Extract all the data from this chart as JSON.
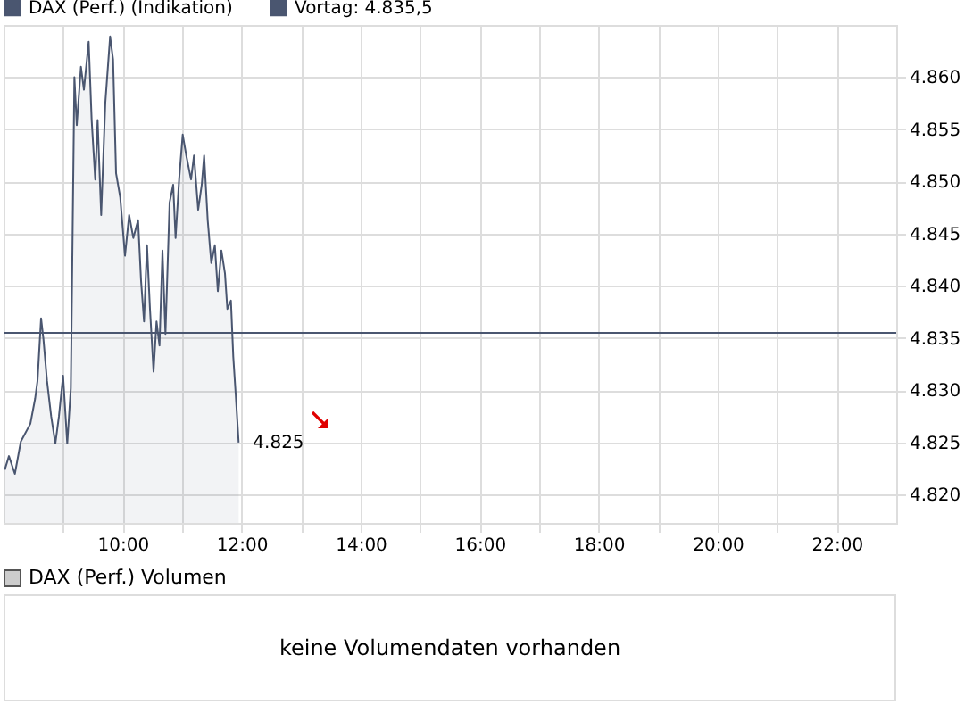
{
  "chart_data": [
    {
      "type": "area",
      "x": [
        8.02,
        8.09,
        8.19,
        8.29,
        8.45,
        8.53,
        8.57,
        8.63,
        8.67,
        8.73,
        8.8,
        8.87,
        8.93,
        9.0,
        9.07,
        9.13,
        9.19,
        9.23,
        9.3,
        9.35,
        9.43,
        9.48,
        9.54,
        9.58,
        9.64,
        9.71,
        9.79,
        9.84,
        9.89,
        9.96,
        10.04,
        10.11,
        10.18,
        10.26,
        10.31,
        10.36,
        10.41,
        10.46,
        10.52,
        10.57,
        10.62,
        10.67,
        10.72,
        10.79,
        10.85,
        10.89,
        10.95,
        11.01,
        11.07,
        11.15,
        11.2,
        11.27,
        11.33,
        11.37,
        11.43,
        11.49,
        11.55,
        11.6,
        11.66,
        11.72,
        11.76,
        11.82,
        11.86,
        11.9,
        11.95
      ],
      "series": [
        {
          "name": "DAX (Perf.) (Indikation)",
          "color": "#4a5670",
          "values": [
            4822.4,
            4823.7,
            4822,
            4825.1,
            4826.8,
            4829.2,
            4830.9,
            4836.9,
            4834.9,
            4830.9,
            4827.5,
            4824.9,
            4827.5,
            4831.4,
            4824.9,
            4830.2,
            4860,
            4855.4,
            4861,
            4858.8,
            4863.4,
            4855.9,
            4850.2,
            4855.9,
            4846.8,
            4857.6,
            4863.9,
            4861.7,
            4850.8,
            4848.5,
            4842.9,
            4846.8,
            4844.6,
            4846.3,
            4840.5,
            4836.6,
            4843.9,
            4837.8,
            4831.8,
            4836.6,
            4834.3,
            4843.4,
            4835.4,
            4848,
            4849.7,
            4844.6,
            4850.2,
            4854.5,
            4852.5,
            4850.2,
            4852.5,
            4847.3,
            4849.7,
            4852.5,
            4846.3,
            4842.2,
            4843.9,
            4839.5,
            4843.4,
            4841.2,
            4837.8,
            4838.6,
            4833.2,
            4829.7,
            4825
          ]
        }
      ],
      "xlim": [
        8,
        23
      ],
      "xticks": [
        {
          "value": 9,
          "label": null
        },
        {
          "value": 10,
          "label": "10:00"
        },
        {
          "value": 11,
          "label": null
        },
        {
          "value": 12,
          "label": "12:00"
        },
        {
          "value": 13,
          "label": null
        },
        {
          "value": 14,
          "label": "14:00"
        },
        {
          "value": 15,
          "label": null
        },
        {
          "value": 16,
          "label": "16:00"
        },
        {
          "value": 17,
          "label": null
        },
        {
          "value": 18,
          "label": "18:00"
        },
        {
          "value": 19,
          "label": null
        },
        {
          "value": 20,
          "label": "20:00"
        },
        {
          "value": 21,
          "label": null
        },
        {
          "value": 22,
          "label": "22:00"
        }
      ],
      "ylim": [
        4817.3,
        4865
      ],
      "yticks": [
        {
          "value": 4820,
          "label": "4.820"
        },
        {
          "value": 4825,
          "label": "4.825"
        },
        {
          "value": 4830,
          "label": "4.830"
        },
        {
          "value": 4835,
          "label": "4.835"
        },
        {
          "value": 4840,
          "label": "4.840"
        },
        {
          "value": 4845,
          "label": "4.845"
        },
        {
          "value": 4850,
          "label": "4.850"
        },
        {
          "value": 4855,
          "label": "4.855"
        },
        {
          "value": 4860,
          "label": "4.860"
        }
      ],
      "ref_lines": [
        {
          "axis": "y",
          "value": 4835.5,
          "label": "Vortag: 4.835,5",
          "color": "#4a5670"
        }
      ],
      "annotations": [
        {
          "text": "4.825",
          "x": 11.95,
          "y": 4825
        }
      ],
      "grid": true,
      "legend": "top left"
    },
    {
      "type": "other",
      "title": "DAX (Perf.) Volumen",
      "annotations": [
        "keine Volumendaten vorhanden"
      ]
    }
  ]
}
